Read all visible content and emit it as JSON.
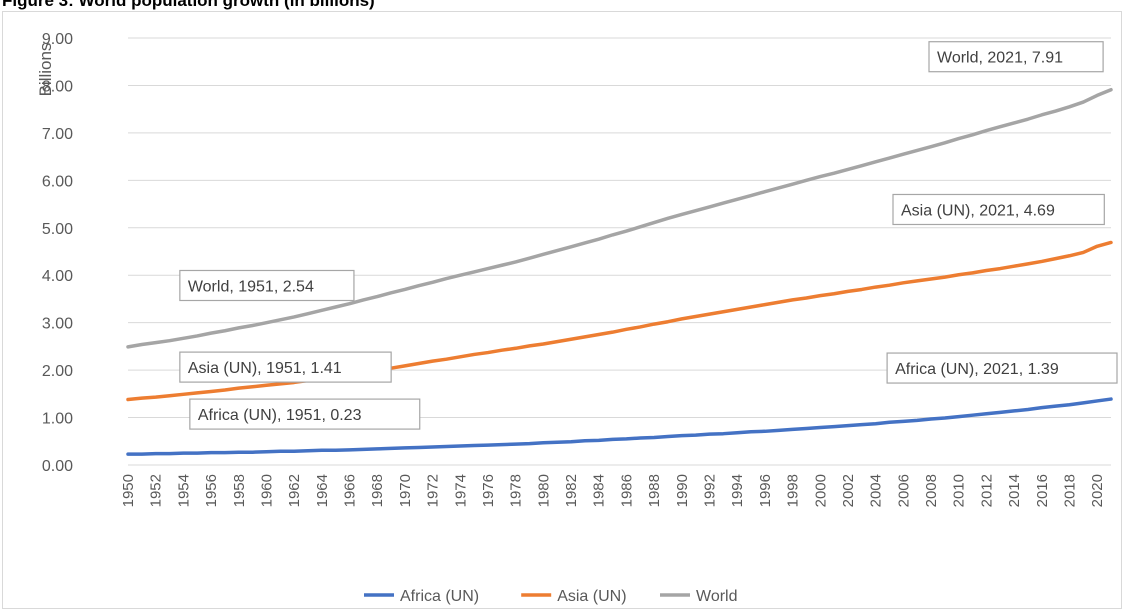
{
  "figure": {
    "title": "Figure 3: World population growth (in billions)"
  },
  "chart_data": {
    "type": "line",
    "title": "",
    "xlabel": "",
    "ylabel": "Billions",
    "ylim": [
      0,
      9
    ],
    "yticks": [
      "0.00",
      "1.00",
      "2.00",
      "3.00",
      "4.00",
      "5.00",
      "6.00",
      "7.00",
      "8.00",
      "9.00"
    ],
    "grid": true,
    "legend": "bottom",
    "x": [
      1950,
      1951,
      1952,
      1953,
      1954,
      1955,
      1956,
      1957,
      1958,
      1959,
      1960,
      1961,
      1962,
      1963,
      1964,
      1965,
      1966,
      1967,
      1968,
      1969,
      1970,
      1971,
      1972,
      1973,
      1974,
      1975,
      1976,
      1977,
      1978,
      1979,
      1980,
      1981,
      1982,
      1983,
      1984,
      1985,
      1986,
      1987,
      1988,
      1989,
      1990,
      1991,
      1992,
      1993,
      1994,
      1995,
      1996,
      1997,
      1998,
      1999,
      2000,
      2001,
      2002,
      2003,
      2004,
      2005,
      2006,
      2007,
      2008,
      2009,
      2010,
      2011,
      2012,
      2013,
      2014,
      2015,
      2016,
      2017,
      2018,
      2019,
      2020,
      2021
    ],
    "xticks": [
      1950,
      1952,
      1954,
      1956,
      1958,
      1960,
      1962,
      1964,
      1966,
      1968,
      1970,
      1972,
      1974,
      1976,
      1978,
      1980,
      1982,
      1984,
      1986,
      1988,
      1990,
      1992,
      1994,
      1996,
      1998,
      2000,
      2002,
      2004,
      2006,
      2008,
      2010,
      2012,
      2014,
      2016,
      2018,
      2020
    ],
    "series": [
      {
        "name": "Africa (UN)",
        "color": "#4472c4",
        "values": [
          0.23,
          0.23,
          0.24,
          0.24,
          0.25,
          0.25,
          0.26,
          0.26,
          0.27,
          0.27,
          0.28,
          0.29,
          0.29,
          0.3,
          0.31,
          0.31,
          0.32,
          0.33,
          0.34,
          0.35,
          0.36,
          0.37,
          0.38,
          0.39,
          0.4,
          0.41,
          0.42,
          0.43,
          0.44,
          0.45,
          0.47,
          0.48,
          0.49,
          0.51,
          0.52,
          0.54,
          0.55,
          0.57,
          0.58,
          0.6,
          0.62,
          0.63,
          0.65,
          0.66,
          0.68,
          0.7,
          0.71,
          0.73,
          0.75,
          0.77,
          0.79,
          0.81,
          0.83,
          0.85,
          0.87,
          0.9,
          0.92,
          0.94,
          0.97,
          0.99,
          1.02,
          1.05,
          1.08,
          1.11,
          1.14,
          1.17,
          1.21,
          1.24,
          1.27,
          1.31,
          1.35,
          1.39
        ]
      },
      {
        "name": "Asia (UN)",
        "color": "#ed7d31",
        "values": [
          1.38,
          1.41,
          1.43,
          1.46,
          1.49,
          1.52,
          1.55,
          1.58,
          1.62,
          1.65,
          1.68,
          1.71,
          1.74,
          1.78,
          1.82,
          1.86,
          1.9,
          1.95,
          1.99,
          2.04,
          2.09,
          2.14,
          2.19,
          2.23,
          2.28,
          2.33,
          2.37,
          2.42,
          2.46,
          2.51,
          2.55,
          2.6,
          2.65,
          2.7,
          2.75,
          2.8,
          2.86,
          2.91,
          2.97,
          3.02,
          3.08,
          3.13,
          3.18,
          3.23,
          3.28,
          3.33,
          3.38,
          3.43,
          3.48,
          3.52,
          3.57,
          3.61,
          3.66,
          3.7,
          3.75,
          3.79,
          3.84,
          3.88,
          3.92,
          3.96,
          4.01,
          4.05,
          4.1,
          4.14,
          4.19,
          4.24,
          4.29,
          4.35,
          4.41,
          4.48,
          4.61,
          4.69
        ]
      },
      {
        "name": "World",
        "color": "#a5a5a5",
        "values": [
          2.49,
          2.54,
          2.58,
          2.62,
          2.67,
          2.72,
          2.78,
          2.83,
          2.89,
          2.94,
          3.0,
          3.06,
          3.12,
          3.19,
          3.26,
          3.33,
          3.4,
          3.48,
          3.55,
          3.63,
          3.7,
          3.78,
          3.85,
          3.93,
          4.0,
          4.07,
          4.14,
          4.21,
          4.28,
          4.36,
          4.44,
          4.52,
          4.6,
          4.68,
          4.76,
          4.85,
          4.93,
          5.02,
          5.11,
          5.2,
          5.28,
          5.36,
          5.44,
          5.52,
          5.6,
          5.68,
          5.76,
          5.84,
          5.92,
          6.0,
          6.08,
          6.15,
          6.23,
          6.31,
          6.39,
          6.47,
          6.55,
          6.63,
          6.71,
          6.79,
          6.88,
          6.96,
          7.05,
          7.13,
          7.21,
          7.29,
          7.38,
          7.46,
          7.55,
          7.65,
          7.79,
          7.91
        ]
      }
    ],
    "annotations": [
      {
        "text": "World, 2021, 7.91",
        "x": 2021,
        "y": 7.91
      },
      {
        "text": "Asia (UN), 2021, 4.69",
        "x": 2021,
        "y": 4.69
      },
      {
        "text": "Africa (UN), 2021, 1.39",
        "x": 2021,
        "y": 1.39
      },
      {
        "text": "World, 1951, 2.54",
        "x": 1951,
        "y": 2.54
      },
      {
        "text": "Asia (UN), 1951, 1.41",
        "x": 1951,
        "y": 1.41
      },
      {
        "text": "Africa (UN), 1951, 0.23",
        "x": 1951,
        "y": 0.23
      }
    ]
  }
}
